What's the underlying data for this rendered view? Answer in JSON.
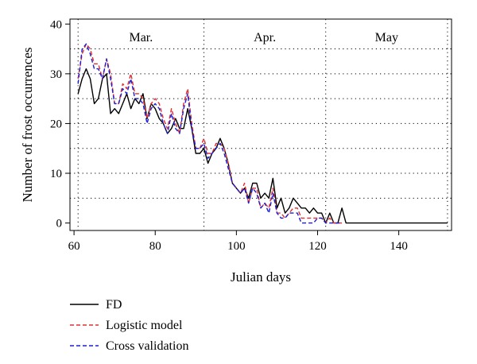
{
  "chart_data": {
    "type": "line",
    "xlabel": "Julian days",
    "ylabel": "Number of frost occurrences",
    "xlim": [
      59,
      153
    ],
    "ylim": [
      -1.5,
      41
    ],
    "xticks": [
      60,
      80,
      100,
      120,
      140
    ],
    "yticks": [
      0,
      10,
      20,
      30,
      40
    ],
    "grid": "dotted",
    "month_boundaries": [
      61,
      92,
      122,
      152
    ],
    "month_labels": [
      {
        "label": "Mar.",
        "x": 76.5
      },
      {
        "label": "Apr.",
        "x": 107
      },
      {
        "label": "May",
        "x": 137
      }
    ],
    "legend_position": "bottom-left",
    "series": [
      {
        "name": "FD",
        "color": "#000000",
        "dash": "solid",
        "x": [
          61,
          62,
          63,
          64,
          65,
          66,
          67,
          68,
          69,
          70,
          71,
          72,
          73,
          74,
          75,
          76,
          77,
          78,
          79,
          80,
          81,
          82,
          83,
          84,
          85,
          86,
          87,
          88,
          89,
          90,
          91,
          92,
          93,
          94,
          95,
          96,
          97,
          98,
          99,
          100,
          101,
          102,
          103,
          104,
          105,
          106,
          107,
          108,
          109,
          110,
          111,
          112,
          113,
          114,
          115,
          116,
          117,
          118,
          119,
          120,
          121,
          122,
          123,
          124,
          125,
          126,
          127,
          128,
          129,
          130,
          131,
          132,
          133,
          134,
          135,
          136,
          137,
          138,
          139,
          140,
          141,
          142,
          143,
          144,
          145,
          146,
          147,
          148,
          149,
          150,
          151,
          152
        ],
        "values": [
          26,
          29,
          31,
          29,
          24,
          25,
          29,
          30,
          22,
          23,
          22,
          24,
          26,
          23,
          25,
          24,
          26,
          21,
          24,
          23,
          21,
          20,
          18,
          19,
          21,
          19,
          19,
          23,
          19,
          14,
          14,
          15,
          12,
          14,
          15,
          17,
          15,
          12,
          8,
          7,
          6,
          7,
          5,
          8,
          8,
          5,
          6,
          5,
          9,
          3,
          5,
          2,
          3,
          5,
          4,
          3,
          3,
          2,
          3,
          2,
          2,
          0,
          2,
          0,
          0,
          3,
          0,
          0,
          0,
          0,
          0,
          0,
          0,
          0,
          0,
          0,
          0,
          0,
          0,
          0,
          0,
          0,
          0,
          0,
          0,
          0,
          0,
          0,
          0,
          0,
          0,
          0
        ]
      },
      {
        "name": "Logistic model",
        "color": "#e03030",
        "dash": "dashed",
        "x": [
          61,
          62,
          63,
          64,
          65,
          66,
          67,
          68,
          69,
          70,
          71,
          72,
          73,
          74,
          75,
          76,
          77,
          78,
          79,
          80,
          81,
          82,
          83,
          84,
          85,
          86,
          87,
          88,
          89,
          90,
          91,
          92,
          93,
          94,
          95,
          96,
          97,
          98,
          99,
          100,
          101,
          102,
          103,
          104,
          105,
          106,
          107,
          108,
          109,
          110,
          111,
          112,
          113,
          114,
          115,
          116,
          117,
          118,
          119,
          120,
          121,
          122,
          123,
          124,
          125,
          126
        ],
        "values": [
          29,
          34,
          36,
          35,
          32,
          32,
          29,
          33,
          30,
          24,
          24,
          28,
          27,
          30,
          26,
          26,
          25,
          21,
          24,
          25,
          24,
          21,
          19,
          23,
          20,
          18,
          24,
          27,
          20,
          15,
          15,
          17,
          14,
          14,
          16,
          16,
          15,
          12,
          8,
          7,
          6,
          8,
          4,
          7,
          7,
          3,
          4,
          3,
          7,
          2,
          2,
          1,
          2,
          3,
          3,
          1,
          1,
          1,
          1,
          1,
          1,
          0,
          1,
          0,
          0,
          0
        ]
      },
      {
        "name": "Cross validation",
        "color": "#1c1cd8",
        "dash": "dashed",
        "x": [
          61,
          62,
          63,
          64,
          65,
          66,
          67,
          68,
          69,
          70,
          71,
          72,
          73,
          74,
          75,
          76,
          77,
          78,
          79,
          80,
          81,
          82,
          83,
          84,
          85,
          86,
          87,
          88,
          89,
          90,
          91,
          92,
          93,
          94,
          95,
          96,
          97,
          98,
          99,
          100,
          101,
          102,
          103,
          104,
          105,
          106,
          107,
          108,
          109,
          110,
          111,
          112,
          113,
          114,
          115,
          116,
          117,
          118,
          119,
          120,
          121,
          122,
          123,
          124,
          125,
          126
        ],
        "values": [
          28,
          35,
          36,
          34,
          31,
          31,
          29,
          33,
          29,
          24,
          24,
          27,
          26,
          29,
          25,
          25,
          24,
          20,
          23,
          24,
          23,
          20,
          18,
          22,
          19,
          18,
          23,
          26,
          19,
          15,
          15,
          16,
          13,
          14,
          15,
          16,
          14,
          11,
          8,
          7,
          6,
          7,
          4,
          7,
          6,
          3,
          4,
          2,
          6,
          2,
          1,
          1,
          2,
          2,
          2,
          0,
          0,
          0,
          0,
          1,
          1,
          0,
          0,
          0,
          0,
          0
        ]
      }
    ]
  }
}
